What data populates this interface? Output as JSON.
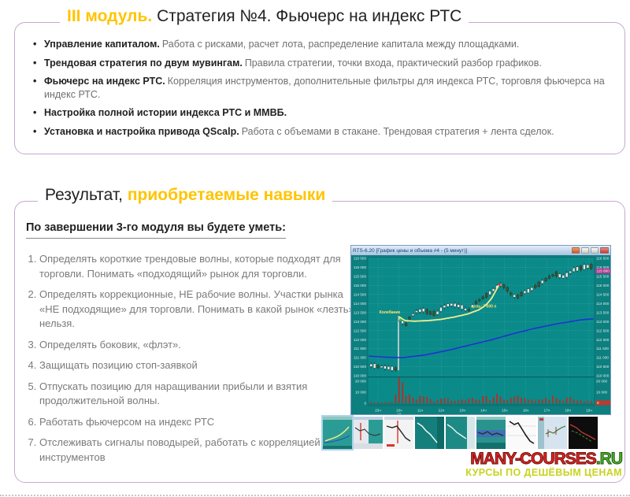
{
  "module_header": {
    "module_label": "III модуль.",
    "title": "Стратегия №4. Фьючерс на индекс РТС"
  },
  "module_bullets": [
    {
      "lead": "Управление капиталом.",
      "text": "Работа с рисками, расчет лота, распределение капитала между площадками."
    },
    {
      "lead": "Трендовая стратегия по двум мувингам.",
      "text": "Правила стратегии, точки входа, практический разбор графиков."
    },
    {
      "lead": "Фьючерс на индекс РТС.",
      "text": "Корреляция инструментов, дополнительные фильтры для индекса РТС, торговля фьючерса на индекс РТС."
    },
    {
      "lead": "Настройка полной истории индекса РТС и ММВБ.",
      "text": ""
    },
    {
      "lead": "Установка и настройка привода QScalp.",
      "text": "Работа с объемами в стакане. Трендовая стратегия + лента сделок."
    }
  ],
  "results": {
    "heading_black": "Результат,",
    "heading_yellow": "приобретаемые навыки",
    "subheading": "По завершении 3-го модуля вы будете уметь:",
    "items": [
      "Определять короткие трендовые волны, которые подходят для торговли. Понимать «подходящий» рынок для торговли.",
      "Определять коррекционные, НЕ рабочие волны. Участки рынка «НЕ подходящие» для торговли. Понимать в какой рынок «лезть» нельзя.",
      "Определять боковик, «флэт».",
      "Защищать позицию стоп-заявкой",
      "Отпускать позицию для наращивании прибыли и взятия продолжительной волны.",
      "Работать фьючерсом на индекс РТС",
      "Отслеживать сигналы поводырей, работать с корреляцией инструментов"
    ]
  },
  "chart_data": {
    "type": "candlestick",
    "window_title": "RTS-6.20 [График цены и объема #4 - (5 минут)]",
    "ylabel": "",
    "xlabel": "",
    "ylim": [
      110000,
      116500
    ],
    "y_labels": [
      "116 500",
      "116 000",
      "115 500",
      "115 000",
      "114 500",
      "114 000",
      "113 500",
      "113 000",
      "112 500",
      "112 000",
      "111 500",
      "111 000",
      "110 500",
      "110 000"
    ],
    "volume_labels": [
      "20 000",
      "10 000",
      "0"
    ],
    "volume_ylim": [
      0,
      22000
    ],
    "time_labels": [
      "23ч",
      "10ч",
      "11ч",
      "12ч",
      "13ч",
      "14ч",
      "15ч",
      "16ч",
      "17ч",
      "18ч",
      "19ч"
    ],
    "date_label": "10",
    "last_price_tag": "115 800",
    "volume_tag": "0",
    "annotations": {
      "left": "Колебание",
      "right": "цель: 7 000 п"
    },
    "grid": true,
    "legend_position": "none",
    "price_anchors": [
      [
        0,
        110600
      ],
      [
        0.03,
        110520
      ],
      [
        0.06,
        110480
      ],
      [
        0.09,
        110420
      ],
      [
        0.115,
        110380
      ],
      [
        0.128,
        110350
      ],
      [
        0.132,
        113150
      ],
      [
        0.15,
        112950
      ],
      [
        0.165,
        112820
      ],
      [
        0.18,
        113200
      ],
      [
        0.21,
        113550
      ],
      [
        0.24,
        113650
      ],
      [
        0.27,
        113480
      ],
      [
        0.3,
        113420
      ],
      [
        0.33,
        113800
      ],
      [
        0.36,
        113950
      ],
      [
        0.39,
        113900
      ],
      [
        0.42,
        113780
      ],
      [
        0.44,
        113550
      ],
      [
        0.47,
        114000
      ],
      [
        0.5,
        114250
      ],
      [
        0.53,
        114500
      ],
      [
        0.56,
        114800
      ],
      [
        0.585,
        115050
      ],
      [
        0.61,
        114900
      ],
      [
        0.635,
        114500
      ],
      [
        0.66,
        114350
      ],
      [
        0.69,
        114600
      ],
      [
        0.72,
        114750
      ],
      [
        0.75,
        115000
      ],
      [
        0.78,
        115250
      ],
      [
        0.81,
        115500
      ],
      [
        0.84,
        115650
      ],
      [
        0.86,
        115450
      ],
      [
        0.88,
        115550
      ],
      [
        0.91,
        115850
      ],
      [
        0.94,
        115950
      ],
      [
        0.97,
        116050
      ],
      [
        1,
        116050
      ]
    ],
    "gap_spike": {
      "x": 0.13,
      "from": 110300,
      "to": 113300
    },
    "ma_anchors": [
      [
        0,
        111080
      ],
      [
        0.08,
        111020
      ],
      [
        0.15,
        111000
      ],
      [
        0.25,
        111150
      ],
      [
        0.35,
        111400
      ],
      [
        0.45,
        111700
      ],
      [
        0.55,
        112000
      ],
      [
        0.65,
        112350
      ],
      [
        0.75,
        112650
      ],
      [
        0.85,
        112900
      ],
      [
        0.95,
        113100
      ],
      [
        1,
        113150
      ]
    ],
    "signal_anchors": [
      [
        0.135,
        113250
      ],
      [
        0.16,
        113050
      ],
      [
        0.2,
        113020
      ],
      [
        0.26,
        113050
      ],
      [
        0.32,
        113120
      ],
      [
        0.38,
        113250
      ],
      [
        0.44,
        113420
      ],
      [
        0.49,
        113650
      ],
      [
        0.52,
        113900
      ],
      [
        0.545,
        114250
      ],
      [
        0.565,
        114700
      ],
      [
        0.578,
        115000
      ]
    ],
    "volume_anchors": [
      [
        0,
        1200
      ],
      [
        0.06,
        900
      ],
      [
        0.11,
        1500
      ],
      [
        0.135,
        21000
      ],
      [
        0.15,
        14000
      ],
      [
        0.17,
        9000
      ],
      [
        0.19,
        7000
      ],
      [
        0.22,
        5500
      ],
      [
        0.26,
        4000
      ],
      [
        0.3,
        2500
      ],
      [
        0.34,
        4500
      ],
      [
        0.38,
        3000
      ],
      [
        0.42,
        2500
      ],
      [
        0.46,
        3500
      ],
      [
        0.5,
        5200
      ],
      [
        0.54,
        4500
      ],
      [
        0.58,
        6500
      ],
      [
        0.62,
        4000
      ],
      [
        0.66,
        5500
      ],
      [
        0.7,
        3500
      ],
      [
        0.74,
        4200
      ],
      [
        0.78,
        3000
      ],
      [
        0.82,
        5800
      ],
      [
        0.86,
        3500
      ],
      [
        0.9,
        4500
      ],
      [
        0.94,
        2800
      ],
      [
        0.98,
        2000
      ]
    ],
    "colors": {
      "plot_bg": "#0b8a8a",
      "frame": "#0d7f7f",
      "grid": "#aadede",
      "candle_up": "#e9e9e9",
      "candle_down": "#4a4f28",
      "wick": "#1d2a22",
      "ma": "#1b35d0",
      "signal": "#f2ef8e",
      "annotation": "#ffe26a",
      "volume": "#a8352c",
      "price_tag": "#b5338f",
      "volume_tag_bg": "#c0392b",
      "axis_text": "#dff2f2",
      "spike": "#cfcfcf",
      "marker_green": "#2ecc40",
      "marker_red": "#e4322c"
    }
  },
  "thumbnails": [
    {
      "name": "teal-chart-yellow-curve",
      "selected": true
    },
    {
      "name": "light-chart-red-line-teal-strip",
      "selected": false
    },
    {
      "name": "white-chart-red-vline-decline",
      "selected": false
    },
    {
      "name": "teal-chart-white-decline",
      "selected": false
    },
    {
      "name": "teal-chart-white-line-panel",
      "selected": false
    },
    {
      "name": "teal-chart-blue-band",
      "selected": false
    },
    {
      "name": "white-chart-black-decline",
      "selected": false
    },
    {
      "name": "pale-blue-quik-chart",
      "selected": false
    },
    {
      "name": "black-chart-red-green-lines",
      "selected": false
    }
  ],
  "logo": {
    "main": "MANY-COURSES",
    "tld": ".RU",
    "subtitle": "КУРСЫ ПО ДЕШЁВЫМ ЦЕНАМ"
  },
  "colors": {
    "accent_yellow": "#ffc400",
    "panel_border": "#c9a6d2",
    "logo_red": "#e52420",
    "logo_green": "#4db32a",
    "logo_sub": "#c7d31f"
  }
}
